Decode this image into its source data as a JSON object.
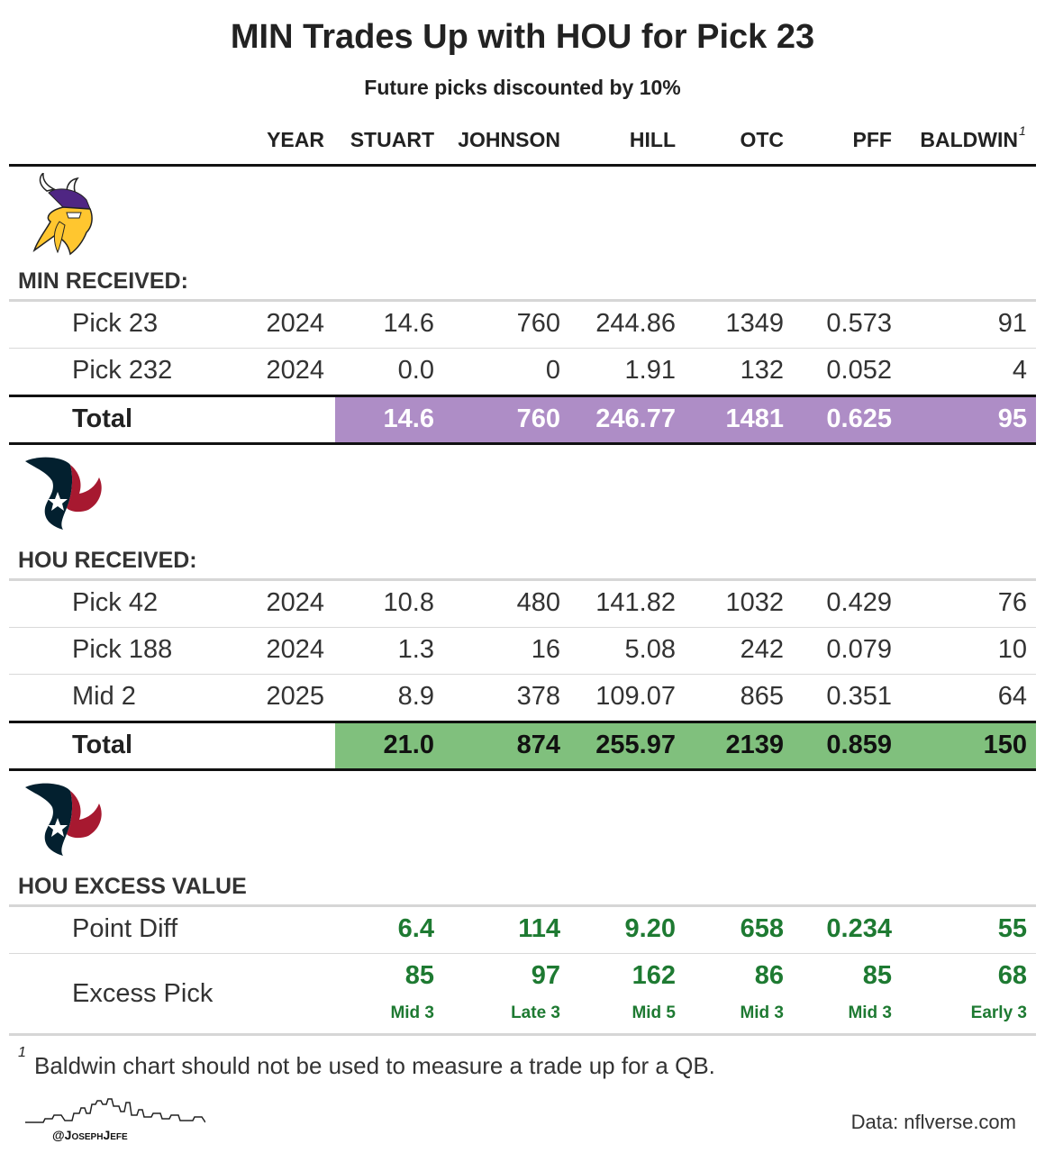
{
  "title": "MIN Trades Up with HOU for Pick 23",
  "subtitle": "Future picks discounted by 10%",
  "columns": [
    "YEAR",
    "STUART",
    "JOHNSON",
    "HILL",
    "OTC",
    "PFF",
    "BALDWIN"
  ],
  "baldwin_footnote_marker": "1",
  "min_section": {
    "logo": "vikings-logo",
    "label": "MIN RECEIVED:",
    "rows": [
      {
        "pick": "Pick 23",
        "year": "2024",
        "stuart": "14.6",
        "johnson": "760",
        "hill": "244.86",
        "otc": "1349",
        "pff": "0.573",
        "baldwin": "91"
      },
      {
        "pick": "Pick 232",
        "year": "2024",
        "stuart": "0.0",
        "johnson": "0",
        "hill": "1.91",
        "otc": "132",
        "pff": "0.052",
        "baldwin": "4"
      }
    ],
    "total": {
      "label": "Total",
      "stuart": "14.6",
      "johnson": "760",
      "hill": "246.77",
      "otc": "1481",
      "pff": "0.625",
      "baldwin": "95"
    },
    "total_color": "#ae8dc6"
  },
  "hou_section": {
    "logo": "texans-logo",
    "label": "HOU RECEIVED:",
    "rows": [
      {
        "pick": "Pick 42",
        "year": "2024",
        "stuart": "10.8",
        "johnson": "480",
        "hill": "141.82",
        "otc": "1032",
        "pff": "0.429",
        "baldwin": "76"
      },
      {
        "pick": "Pick 188",
        "year": "2024",
        "stuart": "1.3",
        "johnson": "16",
        "hill": "5.08",
        "otc": "242",
        "pff": "0.079",
        "baldwin": "10"
      },
      {
        "pick": "Mid 2",
        "year": "2025",
        "stuart": "8.9",
        "johnson": "378",
        "hill": "109.07",
        "otc": "865",
        "pff": "0.351",
        "baldwin": "64"
      }
    ],
    "total": {
      "label": "Total",
      "stuart": "21.0",
      "johnson": "874",
      "hill": "255.97",
      "otc": "2139",
      "pff": "0.859",
      "baldwin": "150"
    },
    "total_color": "#80c07d"
  },
  "excess_section": {
    "logo": "texans-logo",
    "label": "HOU EXCESS VALUE",
    "point_diff": {
      "label": "Point Diff",
      "stuart": "6.4",
      "johnson": "114",
      "hill": "9.20",
      "otc": "658",
      "pff": "0.234",
      "baldwin": "55"
    },
    "excess_pick": {
      "label": "Excess Pick",
      "stuart": {
        "pick": "85",
        "round": "Mid 3"
      },
      "johnson": {
        "pick": "97",
        "round": "Late 3"
      },
      "hill": {
        "pick": "162",
        "round": "Mid 5"
      },
      "otc": {
        "pick": "86",
        "round": "Mid 3"
      },
      "pff": {
        "pick": "85",
        "round": "Mid 3"
      },
      "baldwin": {
        "pick": "68",
        "round": "Early 3"
      }
    },
    "value_color": "#1e7a32"
  },
  "footnote": {
    "marker": "1",
    "text": "Baldwin chart should not be used to measure a trade up for a QB."
  },
  "credit": {
    "handle": "@JosephJefe",
    "logo": "skyline-logo"
  },
  "source": "Data: nflverse.com"
}
